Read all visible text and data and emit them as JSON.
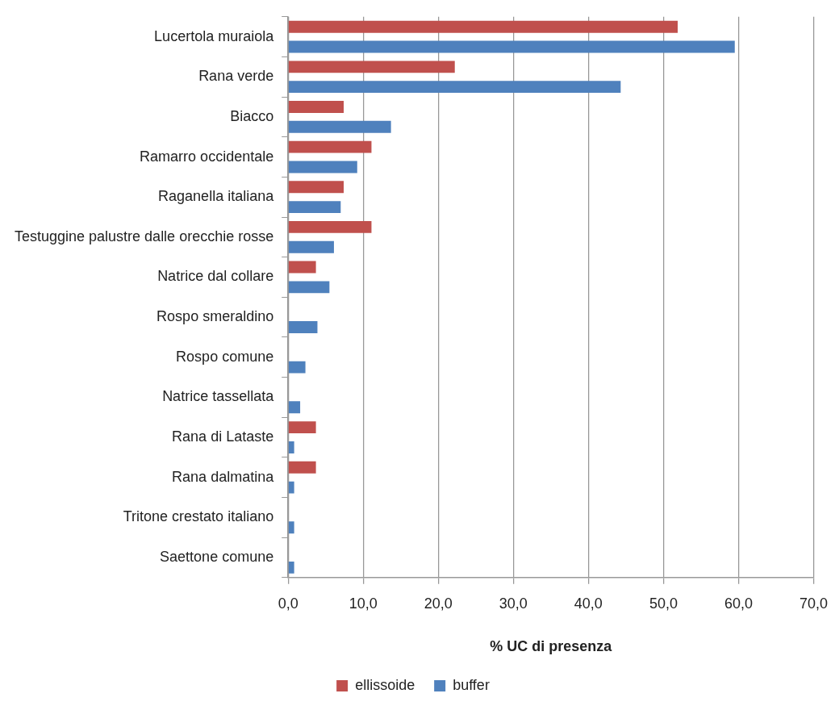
{
  "chart_data": {
    "type": "bar",
    "orientation": "horizontal",
    "xlabel": "% UC di presenza",
    "categories": [
      "Lucertola muraiola",
      "Rana verde",
      "Biacco",
      "Ramarro occidentale",
      "Raganella italiana",
      "Testuggine palustre dalle orecchie rosse",
      "Natrice dal collare",
      "Rospo smeraldino",
      "Rospo comune",
      "Natrice tassellata",
      "Rana di Lataste",
      "Rana dalmatina",
      "Tritone crestato italiano",
      "Saettone comune"
    ],
    "series": [
      {
        "name": "ellissoide",
        "color": "#c0504d",
        "values": [
          51.9,
          22.2,
          7.4,
          11.1,
          7.4,
          11.1,
          3.7,
          null,
          null,
          null,
          3.7,
          3.7,
          null,
          null
        ]
      },
      {
        "name": "buffer",
        "color": "#4f81bd",
        "values": [
          59.5,
          44.3,
          13.7,
          9.2,
          7.0,
          6.1,
          5.5,
          3.9,
          2.3,
          1.6,
          0.8,
          0.8,
          0.8,
          0.8
        ]
      }
    ],
    "xlim": [
      0,
      70
    ],
    "xticks": [
      {
        "value": 0,
        "label": "0,0"
      },
      {
        "value": 10,
        "label": "10,0"
      },
      {
        "value": 20,
        "label": "20,0"
      },
      {
        "value": 30,
        "label": "30,0"
      },
      {
        "value": 40,
        "label": "40,0"
      },
      {
        "value": 50,
        "label": "50,0"
      },
      {
        "value": 60,
        "label": "60,0"
      },
      {
        "value": 70,
        "label": "70,0"
      }
    ],
    "grid": "x",
    "legend": "bottom"
  }
}
